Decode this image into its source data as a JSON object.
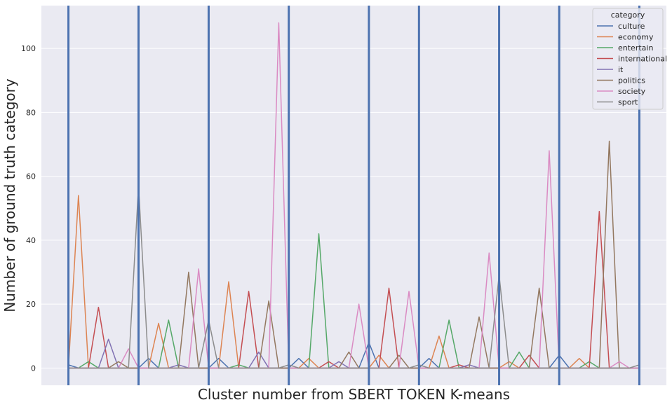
{
  "chart_data": {
    "type": "line",
    "title": "",
    "xlabel": "Cluster number from SBERT TOKEN K-means",
    "ylabel": "Number of ground truth category",
    "ylim": [
      -5.4,
      113.4
    ],
    "xlim": [
      -2.7,
      59.7
    ],
    "yticks": [
      0,
      20,
      40,
      60,
      80,
      100
    ],
    "grid": true,
    "legend": {
      "title": "category",
      "placement": "top-right"
    },
    "cluster_boundaries": [
      0,
      7,
      14,
      22,
      30,
      35,
      43,
      49,
      57
    ],
    "cluster_boundary_color": "#4c72b0",
    "x": [
      0,
      1,
      2,
      3,
      4,
      5,
      6,
      7,
      8,
      9,
      10,
      11,
      12,
      13,
      14,
      15,
      16,
      17,
      18,
      19,
      20,
      21,
      22,
      23,
      24,
      25,
      26,
      27,
      28,
      29,
      30,
      31,
      32,
      33,
      34,
      35,
      36,
      37,
      38,
      39,
      40,
      41,
      42,
      43,
      44,
      45,
      46,
      47,
      48,
      49,
      50,
      51,
      52,
      53,
      54,
      55,
      56,
      57
    ],
    "series": [
      {
        "name": "culture",
        "color": "#4c72b0",
        "values": [
          1,
          0,
          0,
          0,
          0,
          0,
          0,
          0,
          3,
          0,
          0,
          0,
          0,
          0,
          0,
          3,
          0,
          0,
          0,
          0,
          0,
          0,
          0,
          3,
          0,
          0,
          0,
          0,
          0,
          0,
          8,
          0,
          0,
          0,
          0,
          0,
          3,
          0,
          0,
          0,
          0,
          0,
          0,
          0,
          0,
          0,
          0,
          0,
          0,
          4,
          0,
          0,
          0,
          0,
          0,
          0,
          0,
          0
        ]
      },
      {
        "name": "economy",
        "color": "#dd8452",
        "values": [
          0,
          54,
          0,
          0,
          0,
          0,
          0,
          0,
          0,
          14,
          0,
          0,
          0,
          0,
          0,
          0,
          27,
          0,
          0,
          0,
          0,
          0,
          0,
          0,
          3,
          0,
          0,
          0,
          0,
          0,
          0,
          4,
          0,
          0,
          0,
          0,
          0,
          10,
          0,
          0,
          0,
          0,
          0,
          0,
          2,
          0,
          0,
          0,
          0,
          0,
          0,
          3,
          0,
          0,
          0,
          0,
          0,
          0
        ]
      },
      {
        "name": "entertain",
        "color": "#55a868",
        "values": [
          0,
          0,
          2,
          0,
          0,
          0,
          0,
          0,
          0,
          0,
          15,
          0,
          0,
          0,
          0,
          0,
          0,
          1,
          0,
          0,
          0,
          0,
          0,
          0,
          0,
          42,
          0,
          0,
          0,
          0,
          0,
          0,
          0,
          0,
          0,
          0,
          0,
          0,
          15,
          0,
          0,
          0,
          0,
          0,
          0,
          5,
          0,
          0,
          0,
          0,
          0,
          0,
          2,
          0,
          0,
          0,
          0,
          0
        ]
      },
      {
        "name": "international",
        "color": "#c44e52",
        "values": [
          0,
          0,
          0,
          19,
          0,
          0,
          0,
          0,
          0,
          0,
          0,
          0,
          0,
          0,
          0,
          0,
          0,
          0,
          24,
          0,
          0,
          0,
          0,
          0,
          0,
          0,
          2,
          0,
          0,
          0,
          0,
          0,
          25,
          0,
          0,
          0,
          0,
          0,
          0,
          1,
          0,
          0,
          0,
          0,
          0,
          0,
          4,
          0,
          0,
          0,
          0,
          0,
          0,
          49,
          0,
          0,
          0,
          0
        ]
      },
      {
        "name": "it",
        "color": "#8172b3",
        "values": [
          0,
          0,
          0,
          0,
          9,
          0,
          0,
          0,
          0,
          0,
          0,
          1,
          0,
          0,
          0,
          0,
          0,
          0,
          0,
          5,
          0,
          0,
          0,
          0,
          0,
          0,
          0,
          2,
          0,
          0,
          0,
          0,
          0,
          0,
          0,
          0,
          0,
          0,
          0,
          0,
          1,
          0,
          0,
          0,
          0,
          0,
          0,
          0,
          0,
          0,
          0,
          0,
          0,
          0,
          0,
          0,
          0,
          0
        ]
      },
      {
        "name": "politics",
        "color": "#937860",
        "values": [
          0,
          0,
          0,
          0,
          0,
          2,
          0,
          0,
          0,
          0,
          0,
          0,
          30,
          0,
          0,
          0,
          0,
          0,
          0,
          0,
          21,
          0,
          0,
          0,
          0,
          0,
          0,
          0,
          5,
          0,
          0,
          0,
          0,
          4,
          0,
          0,
          0,
          0,
          0,
          0,
          0,
          16,
          0,
          0,
          0,
          0,
          0,
          25,
          0,
          0,
          0,
          0,
          0,
          0,
          71,
          0,
          0,
          0
        ]
      },
      {
        "name": "society",
        "color": "#da8bc3",
        "values": [
          0,
          0,
          0,
          0,
          0,
          0,
          6,
          0,
          0,
          0,
          0,
          0,
          0,
          31,
          0,
          0,
          0,
          0,
          0,
          0,
          0,
          108,
          0,
          0,
          0,
          0,
          0,
          0,
          0,
          20,
          0,
          0,
          0,
          0,
          24,
          0,
          0,
          0,
          0,
          0,
          0,
          0,
          36,
          0,
          0,
          0,
          0,
          0,
          68,
          0,
          0,
          0,
          0,
          0,
          0,
          2,
          0,
          0
        ]
      },
      {
        "name": "sport",
        "color": "#8c8c8c",
        "values": [
          0,
          0,
          0,
          0,
          0,
          0,
          0,
          57,
          0,
          0,
          0,
          0,
          0,
          0,
          15,
          0,
          0,
          0,
          0,
          0,
          0,
          0,
          1,
          0,
          0,
          0,
          0,
          0,
          0,
          0,
          0,
          0,
          0,
          0,
          0,
          1,
          0,
          0,
          0,
          0,
          0,
          0,
          0,
          29,
          0,
          0,
          0,
          0,
          0,
          0,
          0,
          0,
          0,
          0,
          0,
          0,
          0,
          1
        ]
      }
    ]
  }
}
